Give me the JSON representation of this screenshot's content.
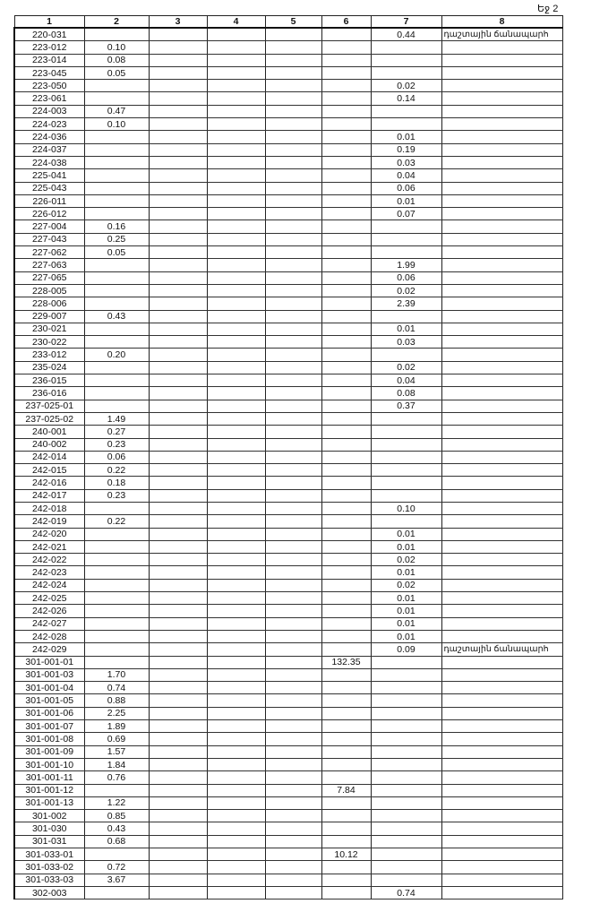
{
  "page_label": "Եջ 2",
  "headers": [
    "1",
    "2",
    "3",
    "4",
    "5",
    "6",
    "7",
    "8"
  ],
  "rows": [
    [
      "220-031",
      "",
      "",
      "",
      "",
      "",
      "0.44",
      "դաշտային ճանապարհ"
    ],
    [
      "223-012",
      "0.10",
      "",
      "",
      "",
      "",
      "",
      ""
    ],
    [
      "223-014",
      "0.08",
      "",
      "",
      "",
      "",
      "",
      ""
    ],
    [
      "223-045",
      "0.05",
      "",
      "",
      "",
      "",
      "",
      ""
    ],
    [
      "223-050",
      "",
      "",
      "",
      "",
      "",
      "0.02",
      ""
    ],
    [
      "223-061",
      "",
      "",
      "",
      "",
      "",
      "0.14",
      ""
    ],
    [
      "224-003",
      "0.47",
      "",
      "",
      "",
      "",
      "",
      ""
    ],
    [
      "224-023",
      "0.10",
      "",
      "",
      "",
      "",
      "",
      ""
    ],
    [
      "224-036",
      "",
      "",
      "",
      "",
      "",
      "0.01",
      ""
    ],
    [
      "224-037",
      "",
      "",
      "",
      "",
      "",
      "0.19",
      ""
    ],
    [
      "224-038",
      "",
      "",
      "",
      "",
      "",
      "0.03",
      ""
    ],
    [
      "225-041",
      "",
      "",
      "",
      "",
      "",
      "0.04",
      ""
    ],
    [
      "225-043",
      "",
      "",
      "",
      "",
      "",
      "0.06",
      ""
    ],
    [
      "226-011",
      "",
      "",
      "",
      "",
      "",
      "0.01",
      ""
    ],
    [
      "226-012",
      "",
      "",
      "",
      "",
      "",
      "0.07",
      ""
    ],
    [
      "227-004",
      "0.16",
      "",
      "",
      "",
      "",
      "",
      ""
    ],
    [
      "227-043",
      "0.25",
      "",
      "",
      "",
      "",
      "",
      ""
    ],
    [
      "227-062",
      "0.05",
      "",
      "",
      "",
      "",
      "",
      ""
    ],
    [
      "227-063",
      "",
      "",
      "",
      "",
      "",
      "1.99",
      ""
    ],
    [
      "227-065",
      "",
      "",
      "",
      "",
      "",
      "0.06",
      ""
    ],
    [
      "228-005",
      "",
      "",
      "",
      "",
      "",
      "0.02",
      ""
    ],
    [
      "228-006",
      "",
      "",
      "",
      "",
      "",
      "2.39",
      ""
    ],
    [
      "229-007",
      "0.43",
      "",
      "",
      "",
      "",
      "",
      ""
    ],
    [
      "230-021",
      "",
      "",
      "",
      "",
      "",
      "0.01",
      ""
    ],
    [
      "230-022",
      "",
      "",
      "",
      "",
      "",
      "0.03",
      ""
    ],
    [
      "233-012",
      "0.20",
      "",
      "",
      "",
      "",
      "",
      ""
    ],
    [
      "235-024",
      "",
      "",
      "",
      "",
      "",
      "0.02",
      ""
    ],
    [
      "236-015",
      "",
      "",
      "",
      "",
      "",
      "0.04",
      ""
    ],
    [
      "236-016",
      "",
      "",
      "",
      "",
      "",
      "0.08",
      ""
    ],
    [
      "237-025-01",
      "",
      "",
      "",
      "",
      "",
      "0.37",
      ""
    ],
    [
      "237-025-02",
      "1.49",
      "",
      "",
      "",
      "",
      "",
      ""
    ],
    [
      "240-001",
      "0.27",
      "",
      "",
      "",
      "",
      "",
      ""
    ],
    [
      "240-002",
      "0.23",
      "",
      "",
      "",
      "",
      "",
      ""
    ],
    [
      "242-014",
      "0.06",
      "",
      "",
      "",
      "",
      "",
      ""
    ],
    [
      "242-015",
      "0.22",
      "",
      "",
      "",
      "",
      "",
      ""
    ],
    [
      "242-016",
      "0.18",
      "",
      "",
      "",
      "",
      "",
      ""
    ],
    [
      "242-017",
      "0.23",
      "",
      "",
      "",
      "",
      "",
      ""
    ],
    [
      "242-018",
      "",
      "",
      "",
      "",
      "",
      "0.10",
      ""
    ],
    [
      "242-019",
      "0.22",
      "",
      "",
      "",
      "",
      "",
      ""
    ],
    [
      "242-020",
      "",
      "",
      "",
      "",
      "",
      "0.01",
      ""
    ],
    [
      "242-021",
      "",
      "",
      "",
      "",
      "",
      "0.01",
      ""
    ],
    [
      "242-022",
      "",
      "",
      "",
      "",
      "",
      "0.02",
      ""
    ],
    [
      "242-023",
      "",
      "",
      "",
      "",
      "",
      "0.01",
      ""
    ],
    [
      "242-024",
      "",
      "",
      "",
      "",
      "",
      "0.02",
      ""
    ],
    [
      "242-025",
      "",
      "",
      "",
      "",
      "",
      "0.01",
      ""
    ],
    [
      "242-026",
      "",
      "",
      "",
      "",
      "",
      "0.01",
      ""
    ],
    [
      "242-027",
      "",
      "",
      "",
      "",
      "",
      "0.01",
      ""
    ],
    [
      "242-028",
      "",
      "",
      "",
      "",
      "",
      "0.01",
      ""
    ],
    [
      "242-029",
      "",
      "",
      "",
      "",
      "",
      "0.09",
      "դաշտային ճանապարհ"
    ],
    [
      "301-001-01",
      "",
      "",
      "",
      "",
      "132.35",
      "",
      ""
    ],
    [
      "301-001-03",
      "1.70",
      "",
      "",
      "",
      "",
      "",
      ""
    ],
    [
      "301-001-04",
      "0.74",
      "",
      "",
      "",
      "",
      "",
      ""
    ],
    [
      "301-001-05",
      "0.88",
      "",
      "",
      "",
      "",
      "",
      ""
    ],
    [
      "301-001-06",
      "2.25",
      "",
      "",
      "",
      "",
      "",
      ""
    ],
    [
      "301-001-07",
      "1.89",
      "",
      "",
      "",
      "",
      "",
      ""
    ],
    [
      "301-001-08",
      "0.69",
      "",
      "",
      "",
      "",
      "",
      ""
    ],
    [
      "301-001-09",
      "1.57",
      "",
      "",
      "",
      "",
      "",
      ""
    ],
    [
      "301-001-10",
      "1.84",
      "",
      "",
      "",
      "",
      "",
      ""
    ],
    [
      "301-001-11",
      "0.76",
      "",
      "",
      "",
      "",
      "",
      ""
    ],
    [
      "301-001-12",
      "",
      "",
      "",
      "",
      "7.84",
      "",
      ""
    ],
    [
      "301-001-13",
      "1.22",
      "",
      "",
      "",
      "",
      "",
      ""
    ],
    [
      "301-002",
      "0.85",
      "",
      "",
      "",
      "",
      "",
      ""
    ],
    [
      "301-030",
      "0.43",
      "",
      "",
      "",
      "",
      "",
      ""
    ],
    [
      "301-031",
      "0.68",
      "",
      "",
      "",
      "",
      "",
      ""
    ],
    [
      "301-033-01",
      "",
      "",
      "",
      "",
      "10.12",
      "",
      ""
    ],
    [
      "301-033-02",
      "0.72",
      "",
      "",
      "",
      "",
      "",
      ""
    ],
    [
      "301-033-03",
      "3.67",
      "",
      "",
      "",
      "",
      "",
      ""
    ],
    [
      "302-003",
      "",
      "",
      "",
      "",
      "",
      "0.74",
      ""
    ]
  ]
}
